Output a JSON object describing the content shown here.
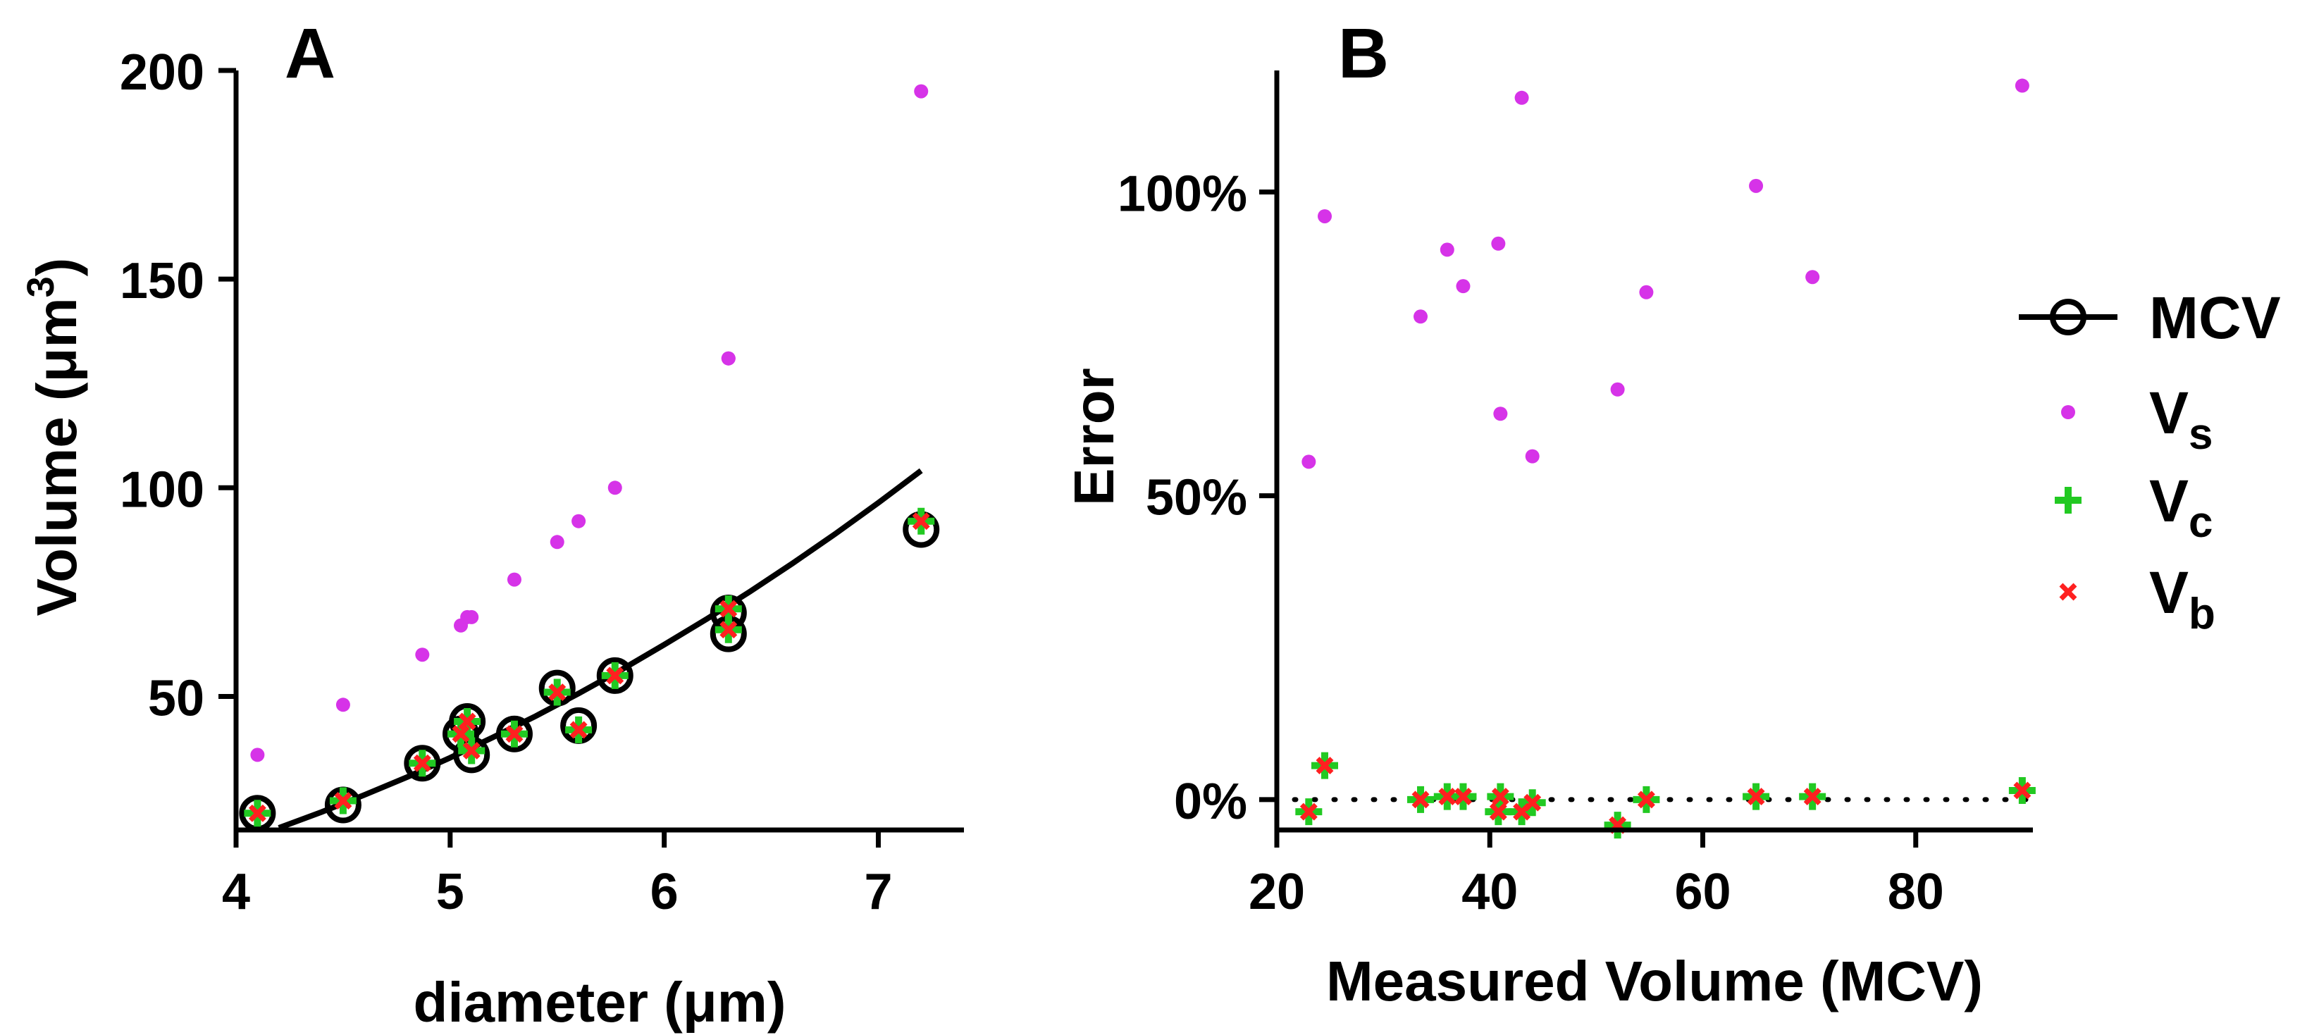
{
  "chart_data": [
    {
      "panel": "A",
      "type": "scatter",
      "title": "A",
      "xlabel": "diameter (μm)",
      "ylabel": "Volume (μm³)",
      "ylabel_base": "Volume (μm",
      "ylabel_sup": "3",
      "ylabel_close": ")",
      "xlim": [
        4,
        7.4
      ],
      "ylim": [
        18,
        200
      ],
      "xticks": [
        4,
        5,
        6,
        7
      ],
      "xtick_labels": [
        "4",
        "5",
        "6",
        "7"
      ],
      "yticks": [
        50,
        100,
        150,
        200
      ],
      "ytick_labels": [
        "50",
        "100",
        "150",
        "200"
      ],
      "diameters": [
        4.1,
        4.5,
        4.87,
        5.05,
        5.08,
        5.1,
        5.3,
        5.5,
        5.6,
        5.77,
        6.3,
        6.3,
        7.2
      ],
      "series": [
        {
          "name": "MCV",
          "color": "#000000",
          "values": [
            22,
            24,
            34,
            41,
            44,
            36,
            41,
            52,
            43,
            55,
            65,
            70,
            90
          ]
        },
        {
          "name": "Vs",
          "color": "#d633e8",
          "values": [
            36,
            48,
            60,
            67,
            69,
            69,
            78,
            87,
            92,
            100,
            131,
            131,
            195
          ]
        },
        {
          "name": "Vc",
          "color": "#22c922",
          "values": [
            22,
            25,
            34,
            41,
            44,
            37,
            41,
            51,
            42,
            55,
            66,
            71,
            92
          ]
        },
        {
          "name": "Vb",
          "color": "#ff2020",
          "values": [
            22,
            25,
            34,
            41,
            44,
            37,
            41,
            51,
            42,
            55,
            66,
            71,
            92
          ]
        }
      ],
      "fit_curve": {
        "name": "fit",
        "color": "#000000",
        "x": [
          4.2,
          4.4,
          4.6,
          4.8,
          5.0,
          5.2,
          5.4,
          5.6,
          5.8,
          6.0,
          6.2,
          6.4,
          6.6,
          6.8,
          7.0,
          7.2
        ],
        "y": [
          18.5,
          22.3,
          26.4,
          30.7,
          35.3,
          40.2,
          45.3,
          50.7,
          56.4,
          62.4,
          68.6,
          75.1,
          81.9,
          89.0,
          96.4,
          104.1
        ]
      },
      "grid": false
    },
    {
      "panel": "B",
      "type": "scatter",
      "title": "B",
      "xlabel": "Measured Volume (MCV)",
      "ylabel": "Error",
      "xlim": [
        20,
        91
      ],
      "ylim": [
        -0.05,
        1.2
      ],
      "xticks": [
        20,
        40,
        60,
        80
      ],
      "xtick_labels": [
        "20",
        "40",
        "60",
        "80"
      ],
      "yticks": [
        0,
        0.5,
        1.0
      ],
      "ytick_labels": [
        "0%",
        "50%",
        "100%"
      ],
      "reference_line": {
        "y": 0,
        "style": "dotted"
      },
      "series": [
        {
          "name": "Vs",
          "color": "#d633e8",
          "x": [
            23,
            24.5,
            33.5,
            36,
            37.5,
            40.8,
            41,
            43,
            44,
            52,
            54.7,
            65,
            70.3,
            90
          ],
          "y": [
            0.556,
            0.96,
            0.795,
            0.905,
            0.845,
            0.915,
            0.635,
            1.155,
            0.565,
            0.675,
            0.835,
            1.01,
            0.86,
            1.175
          ]
        },
        {
          "name": "Vc",
          "color": "#22c922",
          "x": [
            23,
            24.5,
            33.5,
            36,
            37.5,
            40.8,
            41,
            43,
            44,
            52,
            54.7,
            65,
            70.3,
            90
          ],
          "y": [
            -0.02,
            0.056,
            0.0,
            0.005,
            0.005,
            -0.02,
            0.005,
            -0.02,
            -0.005,
            -0.042,
            0.0,
            0.005,
            0.005,
            0.015
          ]
        },
        {
          "name": "Vb",
          "color": "#ff2020",
          "x": [
            23,
            24.5,
            33.5,
            36,
            37.5,
            40.8,
            41,
            43,
            44,
            52,
            54.7,
            65,
            70.3,
            90
          ],
          "y": [
            -0.02,
            0.056,
            0.0,
            0.005,
            0.005,
            -0.02,
            0.005,
            -0.02,
            -0.005,
            -0.042,
            0.0,
            0.005,
            0.005,
            0.015
          ]
        }
      ],
      "grid": false
    }
  ],
  "legend": {
    "placement": "right",
    "entries": [
      {
        "key": "MCV",
        "label": "MCV",
        "sub": ""
      },
      {
        "key": "Vs",
        "label": "V",
        "sub": "s"
      },
      {
        "key": "Vc",
        "label": "V",
        "sub": "c"
      },
      {
        "key": "Vb",
        "label": "V",
        "sub": "b"
      }
    ]
  }
}
